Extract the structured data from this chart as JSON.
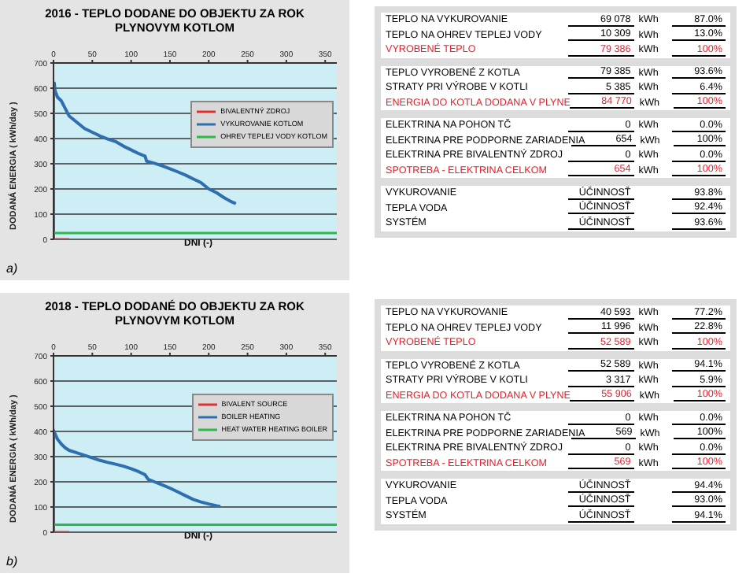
{
  "chart_data": [
    {
      "type": "line",
      "title": "2016 - TEPLO DODANE DO OBJEKTU ZA ROK PLYNOVYM KOTLOM",
      "xlabel": "DNI (-)",
      "ylabel": "DODANÁ ENERGIA ( kWh/day )",
      "annotations": [
        "a)"
      ],
      "xlim": [
        0,
        365
      ],
      "xticks": [
        0,
        50,
        100,
        150,
        200,
        250,
        300,
        350
      ],
      "ylim": [
        0,
        700
      ],
      "yticks": [
        0,
        100,
        200,
        300,
        400,
        500,
        600,
        700
      ],
      "grid": "y",
      "legend": "top right",
      "marker": "none",
      "series": [
        {
          "name": "BIVALENTNÝ ZDROJ",
          "color": "#e03030",
          "x": [
            0,
            20
          ],
          "values": [
            0,
            0
          ]
        },
        {
          "name": "VYKUROVANIE KOTLOM",
          "color": "#2f6fb0",
          "x": [
            0,
            0,
            1,
            2,
            5,
            10,
            15,
            20,
            30,
            40,
            50,
            60,
            70,
            80,
            90,
            100,
            110,
            118,
            120,
            130,
            140,
            150,
            160,
            170,
            180,
            190,
            200,
            210,
            220,
            230,
            235
          ],
          "values": [
            0,
            620,
            620,
            590,
            565,
            550,
            520,
            490,
            465,
            440,
            425,
            410,
            398,
            388,
            370,
            355,
            340,
            330,
            310,
            302,
            292,
            280,
            268,
            255,
            240,
            225,
            200,
            185,
            165,
            148,
            142
          ]
        },
        {
          "name": "OHREV TEPLEJ VODY KOTLOM",
          "color": "#2db84a",
          "x": [
            0,
            365
          ],
          "values": [
            25,
            25
          ]
        }
      ]
    },
    {
      "type": "other",
      "cell_labels": [
        [
          "TEPLO NA VYKUROVANIE",
          "69 078",
          "kWh",
          "87.0%"
        ],
        [
          "TEPLO NA OHREV TEPLEJ VODY",
          "10 309",
          "kWh",
          "13.0%"
        ],
        [
          "VYROBENÉ TEPLO",
          "79 386",
          "kWh",
          "100%"
        ],
        [
          null,
          null,
          null,
          null
        ],
        [
          "TEPLO VYROBENÉ Z KOTLA",
          "79 385",
          "kWh",
          "93.6%"
        ],
        [
          "STRATY PRI VÝROBE V KOTLI",
          "5 385",
          "kWh",
          "6.4%"
        ],
        [
          "ENERGIA DO KOTLA DODANA V PLYNE",
          "84 770",
          "kWh",
          "100%"
        ],
        [
          null,
          null,
          null,
          null
        ],
        [
          "ELEKTRINA NA POHON TČ",
          "0",
          "kWh",
          "0.0%"
        ],
        [
          "ELEKTRINA PRE PODPORNE ZARIADENIA",
          "654",
          "kWh",
          "100%"
        ],
        [
          "ELEKTRINA PRE BIVALENTNÝ ZDROJ",
          "0",
          "kWh",
          "0.0%"
        ],
        [
          "SPOTREBA - ELEKTRINA CELKOM",
          "654",
          "kWh",
          "100%"
        ],
        [
          null,
          null,
          null,
          null
        ],
        [
          "VYKUROVANIE",
          "ÚČINNOSŤ",
          null,
          "93.8%"
        ],
        [
          "TEPLA VODA",
          "ÚČINNOSŤ",
          null,
          "92.4%"
        ],
        [
          "SYSTÉM",
          "ÚČINNOSŤ",
          null,
          "93.6%"
        ]
      ],
      "colors": [
        "#000000",
        "#000000",
        "#e8202a",
        "#000000",
        "#000000",
        "#000000",
        "#e8202a",
        "#000000",
        "#000000",
        "#000000",
        "#000000",
        "#e8202a",
        "#000000",
        "#000000",
        "#000000",
        "#000000"
      ]
    },
    {
      "type": "line",
      "title": "2018 - TEPLO DODANÉ DO OBJEKTU ZA ROK PLYNOVYM KOTLOM",
      "xlabel": "DNI (-)",
      "ylabel": "DODANÁ ENERGIA ( kWh/day )",
      "annotations": [
        "b)"
      ],
      "xlim": [
        0,
        365
      ],
      "xticks": [
        0,
        50,
        100,
        150,
        200,
        250,
        300,
        350
      ],
      "ylim": [
        0,
        700
      ],
      "yticks": [
        0,
        100,
        200,
        300,
        400,
        500,
        600,
        700
      ],
      "grid": "y",
      "legend": "top right",
      "marker": "none",
      "series": [
        {
          "name": "BIVALENT SOURCE",
          "color": "#e03030",
          "x": [
            0,
            20
          ],
          "values": [
            0,
            0
          ]
        },
        {
          "name": "BOILER HEATING",
          "color": "#2f6fb0",
          "x": [
            0,
            0,
            2,
            5,
            10,
            15,
            20,
            30,
            40,
            50,
            60,
            70,
            80,
            90,
            100,
            110,
            118,
            122,
            130,
            140,
            150,
            160,
            170,
            180,
            190,
            200,
            210,
            215
          ],
          "values": [
            0,
            405,
            390,
            370,
            350,
            335,
            325,
            315,
            305,
            295,
            285,
            277,
            270,
            262,
            252,
            240,
            228,
            210,
            200,
            188,
            175,
            160,
            145,
            130,
            120,
            112,
            105,
            102
          ]
        },
        {
          "name": "HEAT WATER HEATING BOILER",
          "color": "#2db84a",
          "x": [
            0,
            365
          ],
          "values": [
            30,
            30
          ]
        }
      ]
    },
    {
      "type": "other",
      "cell_labels": [
        [
          "TEPLO NA VYKUROVANIE",
          "40 593",
          "kWh",
          "77.2%"
        ],
        [
          "TEPLO NA OHREV TEPLEJ VODY",
          "11 996",
          "kWh",
          "22.8%"
        ],
        [
          "VYROBENÉ TEPLO",
          "52 589",
          "kWh",
          "100%"
        ],
        [
          null,
          null,
          null,
          null
        ],
        [
          "TEPLO VYROBENÉ Z KOTLA",
          "52 589",
          "kWh",
          "94.1%"
        ],
        [
          "STRATY PRI VÝROBE V KOTLI",
          "3 317",
          "kWh",
          "5.9%"
        ],
        [
          "ENERGIA DO KOTLA DODANA V PLYNE",
          "55 906",
          "kWh",
          "100%"
        ],
        [
          null,
          null,
          null,
          null
        ],
        [
          "ELEKTRINA NA POHON TČ",
          "0",
          "kWh",
          "0.0%"
        ],
        [
          "ELEKTRINA PRE PODPORNE ZARIADENIA",
          "569",
          "kWh",
          "100%"
        ],
        [
          "ELEKTRINA PRE BIVALENTNÝ ZDROJ",
          "0",
          "kWh",
          "0.0%"
        ],
        [
          "SPOTREBA - ELEKTRINA CELKOM",
          "569",
          "kWh",
          "100%"
        ],
        [
          null,
          null,
          null,
          null
        ],
        [
          "VYKUROVANIE",
          "ÚČINNOSŤ",
          null,
          "94.4%"
        ],
        [
          "TEPLA VODA",
          "ÚČINNOSŤ",
          null,
          "93.0%"
        ],
        [
          "SYSTÉM",
          "ÚČINNOSŤ",
          null,
          "94.1%"
        ]
      ],
      "colors": [
        "#000000",
        "#000000",
        "#e8202a",
        "#000000",
        "#000000",
        "#000000",
        "#e8202a",
        "#000000",
        "#000000",
        "#000000",
        "#000000",
        "#e8202a",
        "#000000",
        "#000000",
        "#000000",
        "#000000"
      ]
    }
  ]
}
